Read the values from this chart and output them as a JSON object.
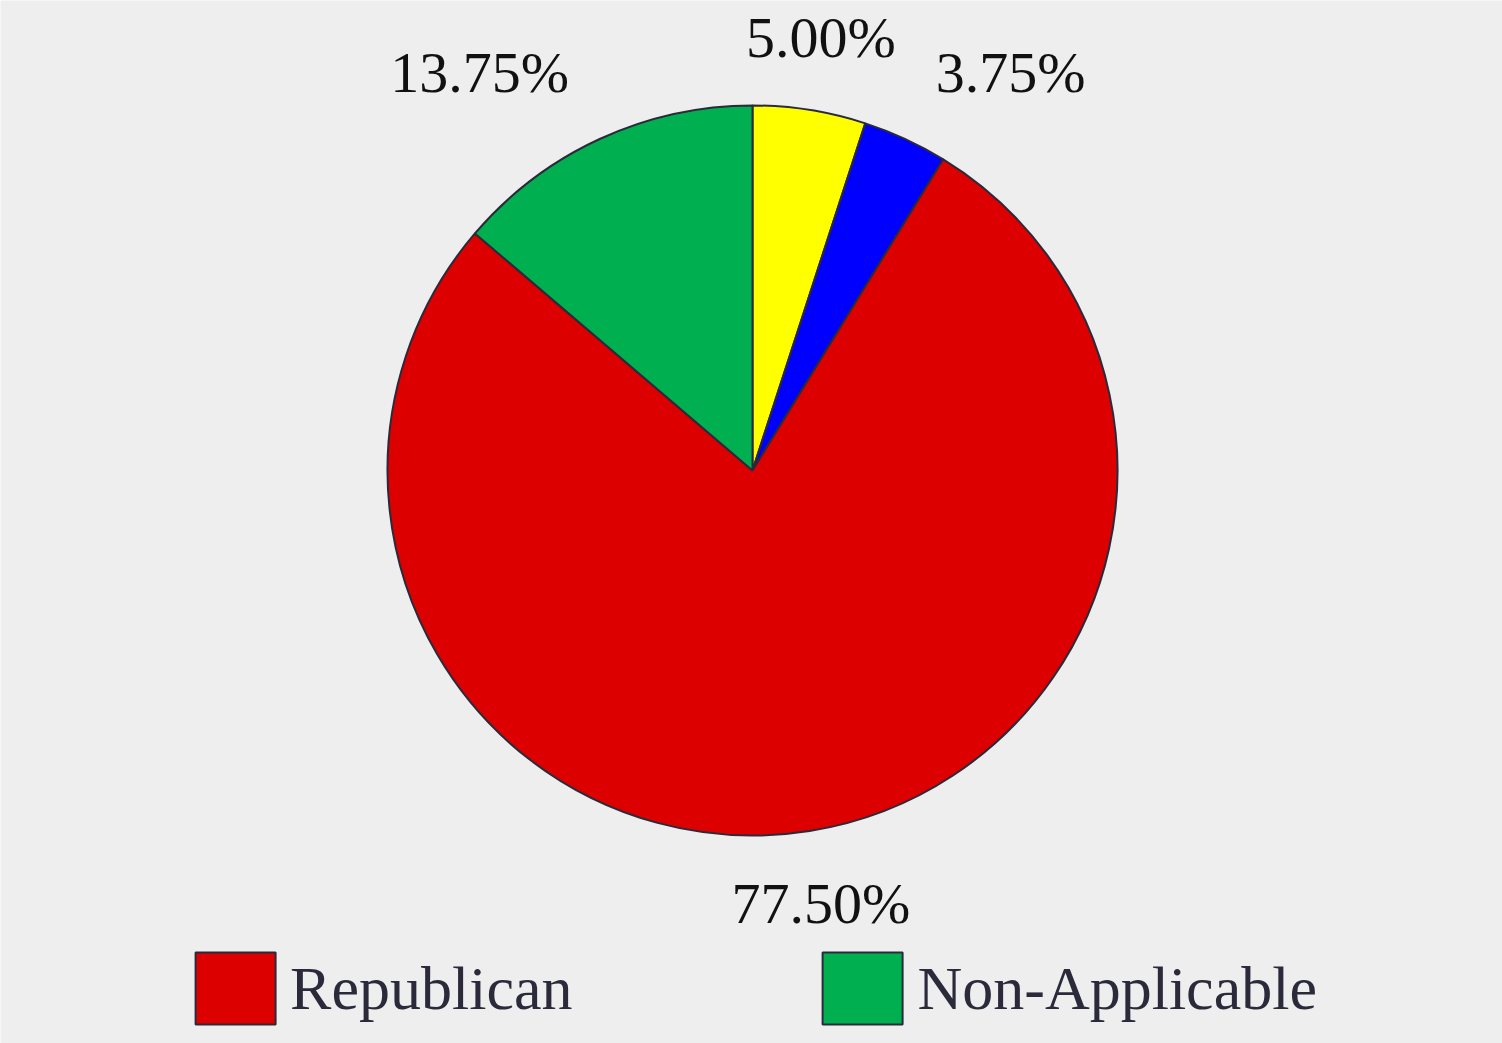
{
  "chart_data": {
    "type": "pie",
    "categories": [
      null,
      null,
      "Republican",
      "Non-Applicable"
    ],
    "values": [
      5.0,
      3.75,
      77.5,
      13.75
    ],
    "colors": [
      "#ffff00",
      "#0000ff",
      "#dd0000",
      "#00b050"
    ],
    "value_labels": [
      "5.00%",
      "3.75%",
      "77.50%",
      "13.75%"
    ],
    "legend": "bottom"
  }
}
